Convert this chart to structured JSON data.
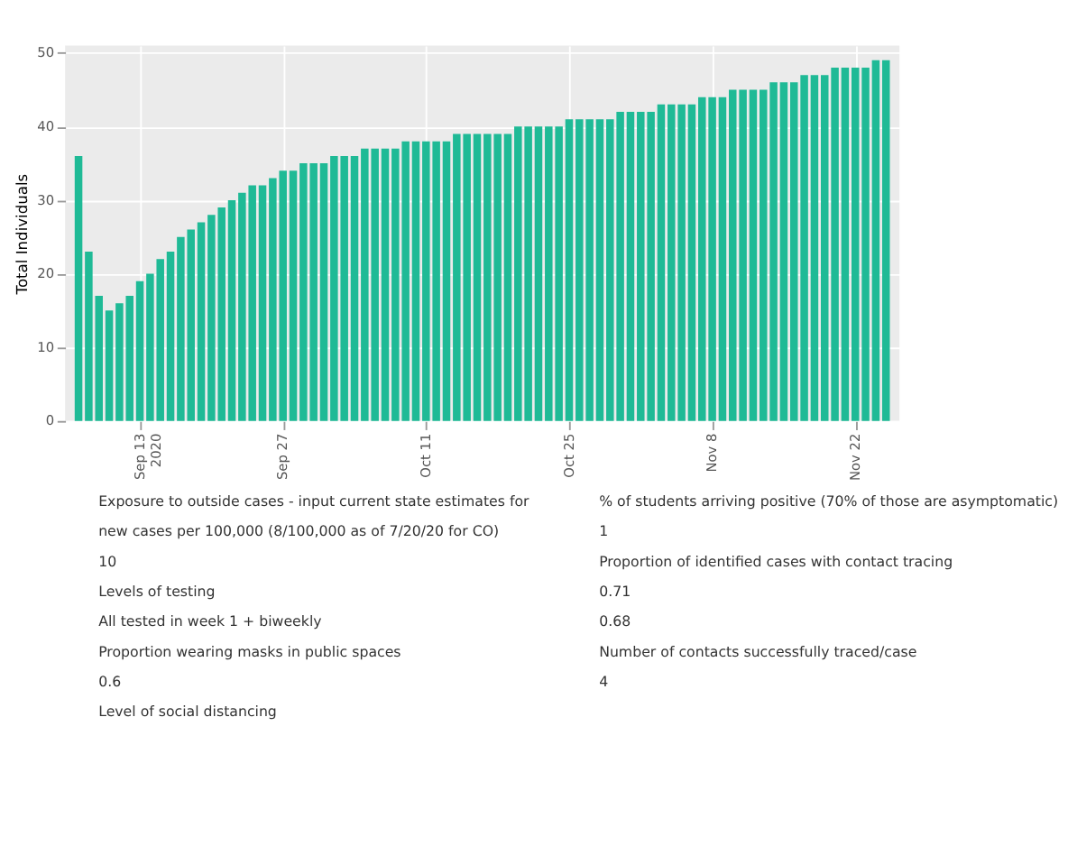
{
  "chart_data": {
    "type": "bar",
    "ylabel": "Total Individuals",
    "color": "#1fba96",
    "x": [
      "2020-09-07",
      "2020-09-08",
      "2020-09-09",
      "2020-09-10",
      "2020-09-11",
      "2020-09-12",
      "2020-09-13",
      "2020-09-14",
      "2020-09-15",
      "2020-09-16",
      "2020-09-17",
      "2020-09-18",
      "2020-09-19",
      "2020-09-20",
      "2020-09-21",
      "2020-09-22",
      "2020-09-23",
      "2020-09-24",
      "2020-09-25",
      "2020-09-26",
      "2020-09-27",
      "2020-09-28",
      "2020-09-29",
      "2020-09-30",
      "2020-10-01",
      "2020-10-02",
      "2020-10-03",
      "2020-10-04",
      "2020-10-05",
      "2020-10-06",
      "2020-10-07",
      "2020-10-08",
      "2020-10-09",
      "2020-10-10",
      "2020-10-11",
      "2020-10-12",
      "2020-10-13",
      "2020-10-14",
      "2020-10-15",
      "2020-10-16",
      "2020-10-17",
      "2020-10-18",
      "2020-10-19",
      "2020-10-20",
      "2020-10-21",
      "2020-10-22",
      "2020-10-23",
      "2020-10-24",
      "2020-10-25",
      "2020-10-26",
      "2020-10-27",
      "2020-10-28",
      "2020-10-29",
      "2020-10-30",
      "2020-10-31",
      "2020-11-01",
      "2020-11-02",
      "2020-11-03",
      "2020-11-04",
      "2020-11-05",
      "2020-11-06",
      "2020-11-07",
      "2020-11-08",
      "2020-11-09",
      "2020-11-10",
      "2020-11-11",
      "2020-11-12",
      "2020-11-13",
      "2020-11-14",
      "2020-11-15",
      "2020-11-16",
      "2020-11-17",
      "2020-11-18",
      "2020-11-19",
      "2020-11-20",
      "2020-11-21",
      "2020-11-22",
      "2020-11-23",
      "2020-11-24",
      "2020-11-25"
    ],
    "values": [
      36,
      23,
      17,
      15,
      16,
      17,
      19,
      20,
      22,
      23,
      25,
      26,
      27,
      28,
      29,
      30,
      31,
      32,
      32,
      33,
      34,
      34,
      35,
      35,
      35,
      36,
      36,
      36,
      37,
      37,
      37,
      37,
      38,
      38,
      38,
      38,
      38,
      39,
      39,
      39,
      39,
      39,
      39,
      40,
      40,
      40,
      40,
      40,
      41,
      41,
      41,
      41,
      41,
      42,
      42,
      42,
      42,
      43,
      43,
      43,
      43,
      44,
      44,
      44,
      45,
      45,
      45,
      45,
      46,
      46,
      46,
      47,
      47,
      47,
      48,
      48,
      48,
      48,
      49,
      49
    ],
    "xlim": [
      "2020-09-06T12:00",
      "2020-11-25T12:00"
    ],
    "xticks": [
      {
        "value": "2020-09-13",
        "label": "Sep 13\n2020"
      },
      {
        "value": "2020-09-27",
        "label": "Sep 27"
      },
      {
        "value": "2020-10-11",
        "label": "Oct 11"
      },
      {
        "value": "2020-10-25",
        "label": "Oct 25"
      },
      {
        "value": "2020-11-08",
        "label": "Nov 8"
      },
      {
        "value": "2020-11-22",
        "label": "Nov 22"
      }
    ],
    "ylim": [
      0,
      51
    ],
    "yticks": [
      0,
      10,
      20,
      30,
      40,
      50
    ],
    "grid": true,
    "annotations": [
      "Exposure to outside cases - input current state estimates for",
      "new cases per 100,000 (8/100,000 as of 7/20/20 for CO)",
      "10",
      "Levels of testing",
      "All tested in week 1 + biweekly",
      "Proportion wearing masks in public spaces",
      "0.6",
      "Level of social distancing",
      "% of students arriving positive (70% of those are asymptomatic)",
      "1",
      "Proportion of identified cases with contact tracing",
      "0.71",
      "0.68",
      "Number of contacts successfully traced/case",
      "4"
    ]
  }
}
